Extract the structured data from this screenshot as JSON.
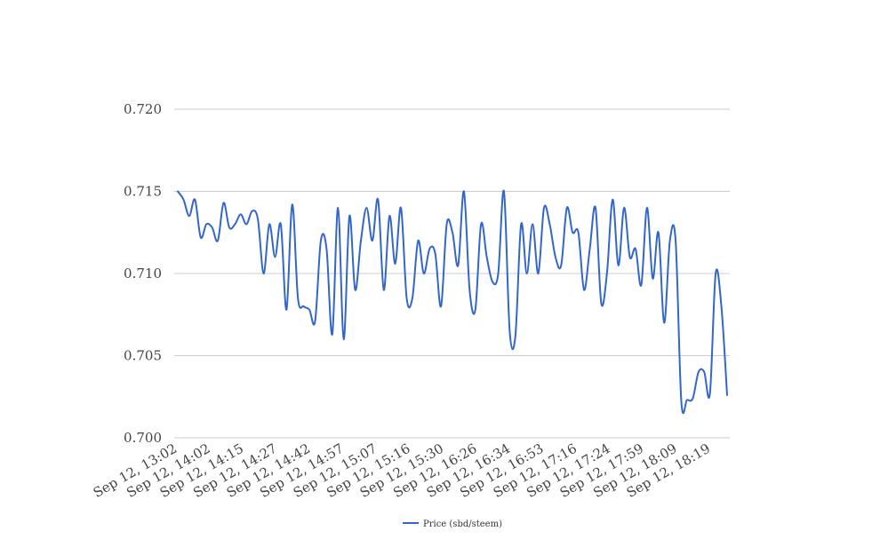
{
  "chart_data": {
    "type": "line",
    "title": "",
    "xlabel": "",
    "ylabel": "",
    "ylim": [
      0.7,
      0.72
    ],
    "y_ticks": [
      "0.700",
      "0.705",
      "0.710",
      "0.715",
      "0.720"
    ],
    "grid": true,
    "legend_position": "bottom",
    "x_tick_labels": [
      "Sep 12, 13:02",
      "Sep 12, 14:02",
      "Sep 12, 14:15",
      "Sep 12, 14:27",
      "Sep 12, 14:42",
      "Sep 12, 14:57",
      "Sep 12, 15:07",
      "Sep 12, 15:16",
      "Sep 12, 15:30",
      "Sep 12, 16:26",
      "Sep 12, 16:34",
      "Sep 12, 16:53",
      "Sep 12, 17:16",
      "Sep 12, 17:24",
      "Sep 12, 17:59",
      "Sep 12, 18:09",
      "Sep 12, 18:19"
    ],
    "series": [
      {
        "name": "Price (sbd/steem)",
        "color": "#3366cc",
        "values": [
          0.715,
          0.7145,
          0.7135,
          0.7145,
          0.7122,
          0.713,
          0.7128,
          0.712,
          0.7143,
          0.7128,
          0.713,
          0.7136,
          0.713,
          0.7138,
          0.7133,
          0.71,
          0.713,
          0.711,
          0.713,
          0.7078,
          0.7142,
          0.7085,
          0.708,
          0.7078,
          0.7071,
          0.712,
          0.7115,
          0.7063,
          0.714,
          0.706,
          0.7135,
          0.709,
          0.712,
          0.714,
          0.712,
          0.7145,
          0.709,
          0.7135,
          0.7106,
          0.714,
          0.7085,
          0.7085,
          0.712,
          0.71,
          0.7115,
          0.7112,
          0.708,
          0.713,
          0.7125,
          0.7105,
          0.715,
          0.709,
          0.7078,
          0.713,
          0.711,
          0.7095,
          0.71,
          0.715,
          0.7065,
          0.7062,
          0.713,
          0.71,
          0.713,
          0.71,
          0.714,
          0.713,
          0.711,
          0.7105,
          0.714,
          0.7125,
          0.7125,
          0.709,
          0.7115,
          0.714,
          0.7082,
          0.71,
          0.7145,
          0.7105,
          0.714,
          0.711,
          0.7115,
          0.7093,
          0.714,
          0.7097,
          0.7125,
          0.707,
          0.712,
          0.712,
          0.7022,
          0.7023,
          0.7024,
          0.704,
          0.704,
          0.7027,
          0.71,
          0.708,
          0.7026
        ]
      }
    ]
  }
}
